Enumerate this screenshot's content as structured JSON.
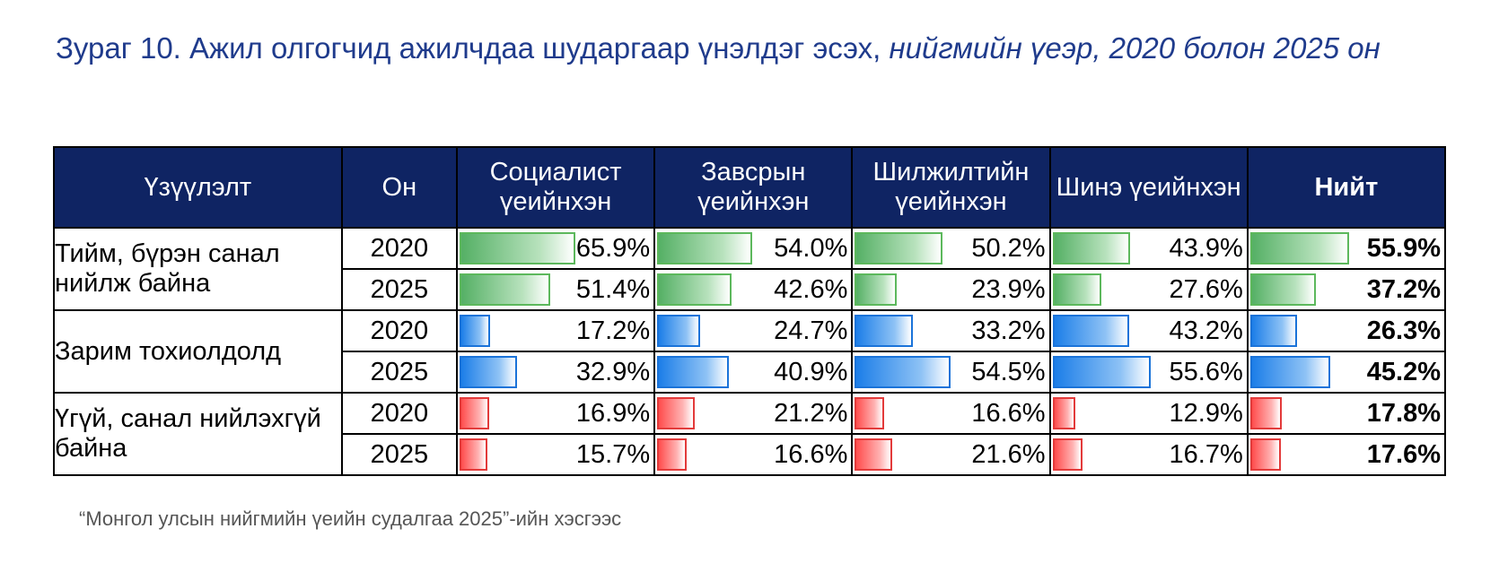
{
  "title": {
    "main": "Зураг 10. Ажил олгогчид ажилчдаа шударгаар үнэлдэг эсэх,",
    "italic": "нийгмийн үеэр, 2020 болон 2025 он"
  },
  "source": "“Монгол улсын нийгмийн үеийн судалгаа 2025”-ийн хэсгээс",
  "chart_data": {
    "type": "table",
    "headers": {
      "category": "Үзүүлэлт",
      "year": "Он",
      "groups": [
        "Социалист үеийнхэн",
        "Завсрын үеийнхэн",
        "Шилжилтийн үеийнхэн",
        "Шинэ үеийнхэн",
        "Нийт"
      ]
    },
    "rows": [
      {
        "category": "Тийм, бүрэн санал нийлж байна",
        "color": "green",
        "years": [
          {
            "year": "2020",
            "values": [
              65.9,
              54.0,
              50.2,
              43.9,
              55.9
            ],
            "labels": [
              "65.9%",
              "54.0%",
              "50.2%",
              "43.9%",
              "55.9%"
            ]
          },
          {
            "year": "2025",
            "values": [
              51.4,
              42.6,
              23.9,
              27.6,
              37.2
            ],
            "labels": [
              "51.4%",
              "42.6%",
              "23.9%",
              "27.6%",
              "37.2%"
            ]
          }
        ]
      },
      {
        "category": "Зарим тохиолдолд",
        "color": "blue",
        "years": [
          {
            "year": "2020",
            "values": [
              17.2,
              24.7,
              33.2,
              43.2,
              26.3
            ],
            "labels": [
              "17.2%",
              "24.7%",
              "33.2%",
              "43.2%",
              "26.3%"
            ]
          },
          {
            "year": "2025",
            "values": [
              32.9,
              40.9,
              54.5,
              55.6,
              45.2
            ],
            "labels": [
              "32.9%",
              "40.9%",
              "54.5%",
              "55.6%",
              "45.2%"
            ]
          }
        ]
      },
      {
        "category": "Үгүй, санал нийлэхгүй байна",
        "color": "red",
        "years": [
          {
            "year": "2020",
            "values": [
              16.9,
              21.2,
              16.6,
              12.9,
              17.8
            ],
            "labels": [
              "16.9%",
              "21.2%",
              "16.6%",
              "12.9%",
              "17.8%"
            ]
          },
          {
            "year": "2025",
            "values": [
              15.7,
              16.6,
              21.6,
              16.7,
              17.6
            ],
            "labels": [
              "15.7%",
              "16.6%",
              "21.6%",
              "16.7%",
              "17.6%"
            ]
          }
        ]
      }
    ]
  }
}
